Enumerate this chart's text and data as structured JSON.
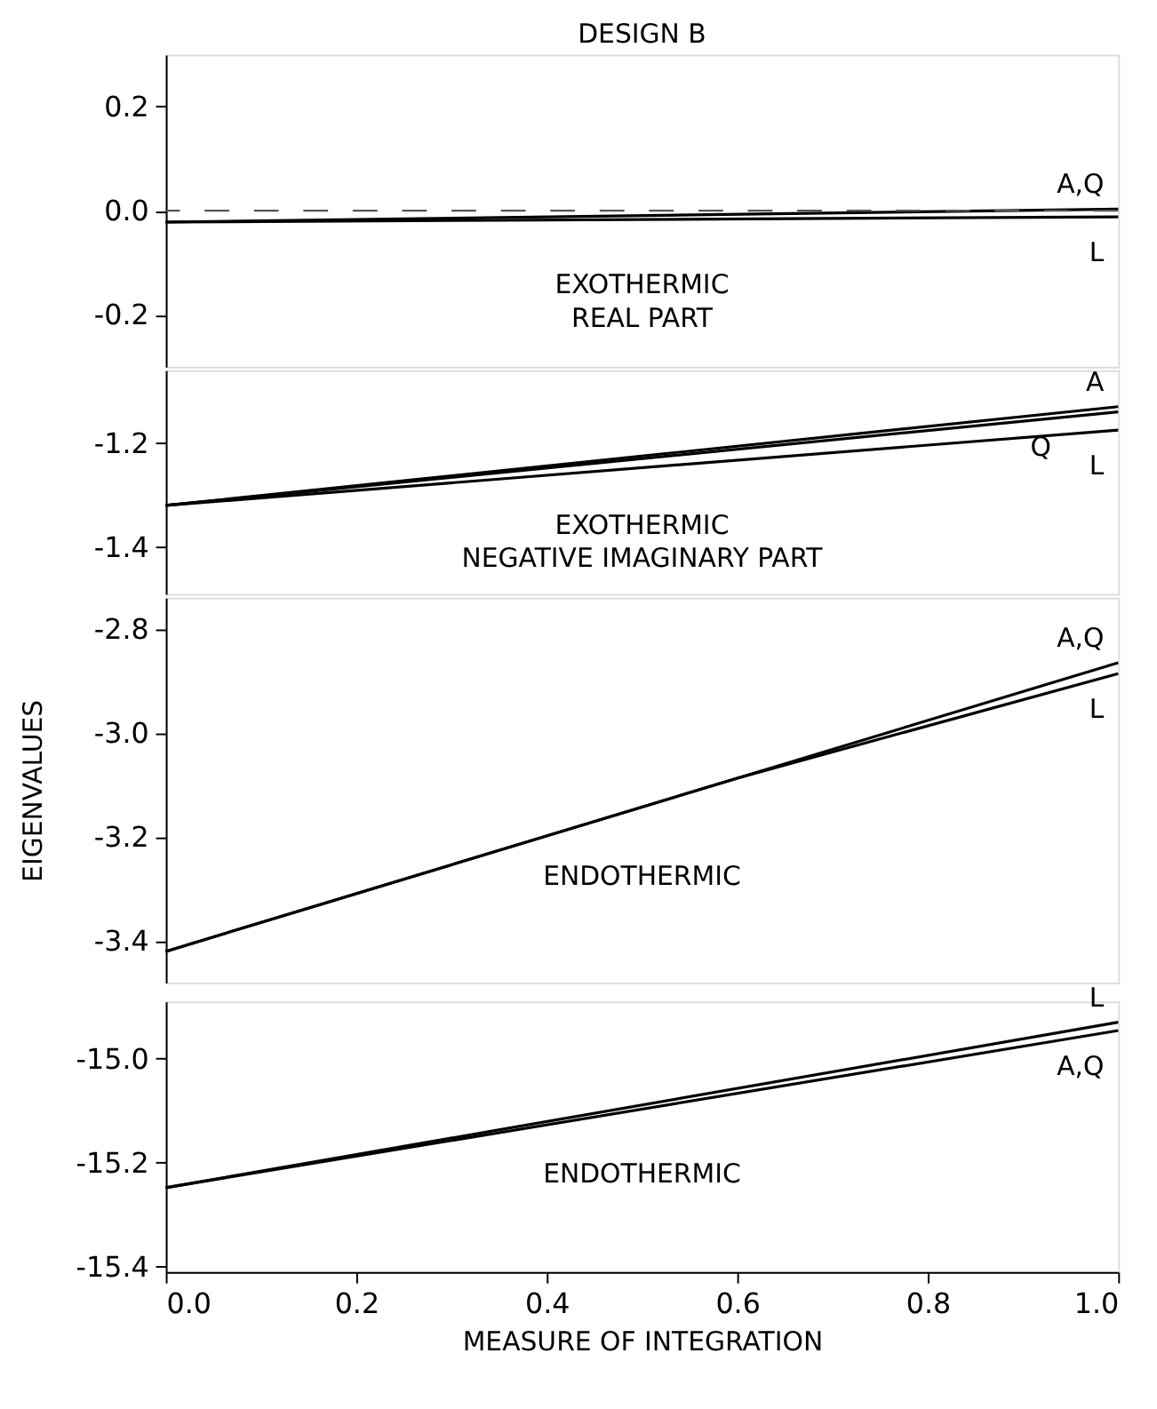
{
  "chart_data": [
    {
      "type": "line",
      "title": "DESIGN B",
      "x": [
        0.0,
        1.0
      ],
      "xlim": [
        0.0,
        1.0
      ],
      "ylim": [
        -0.3,
        0.3
      ],
      "yticks": [
        0.2,
        {
          "value": 0.0,
          "label": "0.0"
        },
        -0.2
      ],
      "tick_labels": "y",
      "series": [
        {
          "name": "A,Q",
          "color": "#000000",
          "values": [
            -0.022,
            0.003
          ]
        },
        {
          "name": "L",
          "color": "#000000",
          "values": [
            -0.022,
            -0.012
          ]
        }
      ],
      "ref_lines": [
        {
          "axis": "y",
          "value": 0.0,
          "line_style": "dashed",
          "color": "#555555"
        }
      ],
      "annotations": [
        "EXOTHERMIC\nREAL PART"
      ]
    },
    {
      "type": "line",
      "x": [
        0.0,
        1.0
      ],
      "xlim": [
        0.0,
        1.0
      ],
      "ylim": [
        -1.49,
        -1.06
      ],
      "yticks": [
        -1.2,
        -1.4
      ],
      "tick_labels": "y",
      "series": [
        {
          "name": "A",
          "color": "#000000",
          "values": [
            -1.32,
            -1.13
          ]
        },
        {
          "name": "Q",
          "color": "#000000",
          "values": [
            -1.32,
            -1.14
          ]
        },
        {
          "name": "L",
          "color": "#000000",
          "values": [
            -1.32,
            -1.175
          ]
        }
      ],
      "annotations": [
        "EXOTHERMIC\nNEGATIVE IMAGINARY PART"
      ]
    },
    {
      "type": "line",
      "ylabel": "EIGENVALUES",
      "x": [
        0.0,
        0.6,
        1.0
      ],
      "xlim": [
        0.0,
        1.0
      ],
      "ylim": [
        -3.48,
        -2.74
      ],
      "yticks": [
        -2.8,
        {
          "value": -3.0,
          "label": "-3.0"
        },
        -3.2,
        -3.4
      ],
      "tick_labels": "y",
      "series": [
        {
          "name": "A,Q",
          "color": "#000000",
          "values": [
            -3.42,
            -3.087,
            -2.865
          ]
        },
        {
          "name": "L",
          "color": "#000000",
          "values": [
            -3.42,
            -3.087,
            -2.886
          ]
        }
      ],
      "annotations": [
        "ENDOTHERMIC"
      ]
    },
    {
      "type": "line",
      "xlabel": "MEASURE  OF INTEGRATION",
      "x": [
        0.0,
        1.0
      ],
      "xlim": [
        0.0,
        1.0
      ],
      "xticks": [
        {
          "value": 0.0,
          "label": "0.0"
        },
        0.2,
        0.4,
        0.6,
        0.8,
        {
          "value": 1.0,
          "label": "1.0"
        }
      ],
      "ylim": [
        -15.41,
        -14.89
      ],
      "yticks": [
        {
          "value": -15.0,
          "label": "-15.0"
        },
        -15.2,
        -15.4
      ],
      "series": [
        {
          "name": "L",
          "color": "#000000",
          "values": [
            -15.248,
            -14.93
          ]
        },
        {
          "name": "A,Q",
          "color": "#000000",
          "values": [
            -15.248,
            -14.946
          ]
        }
      ],
      "annotations": [
        "ENDOTHERMIC"
      ]
    }
  ]
}
